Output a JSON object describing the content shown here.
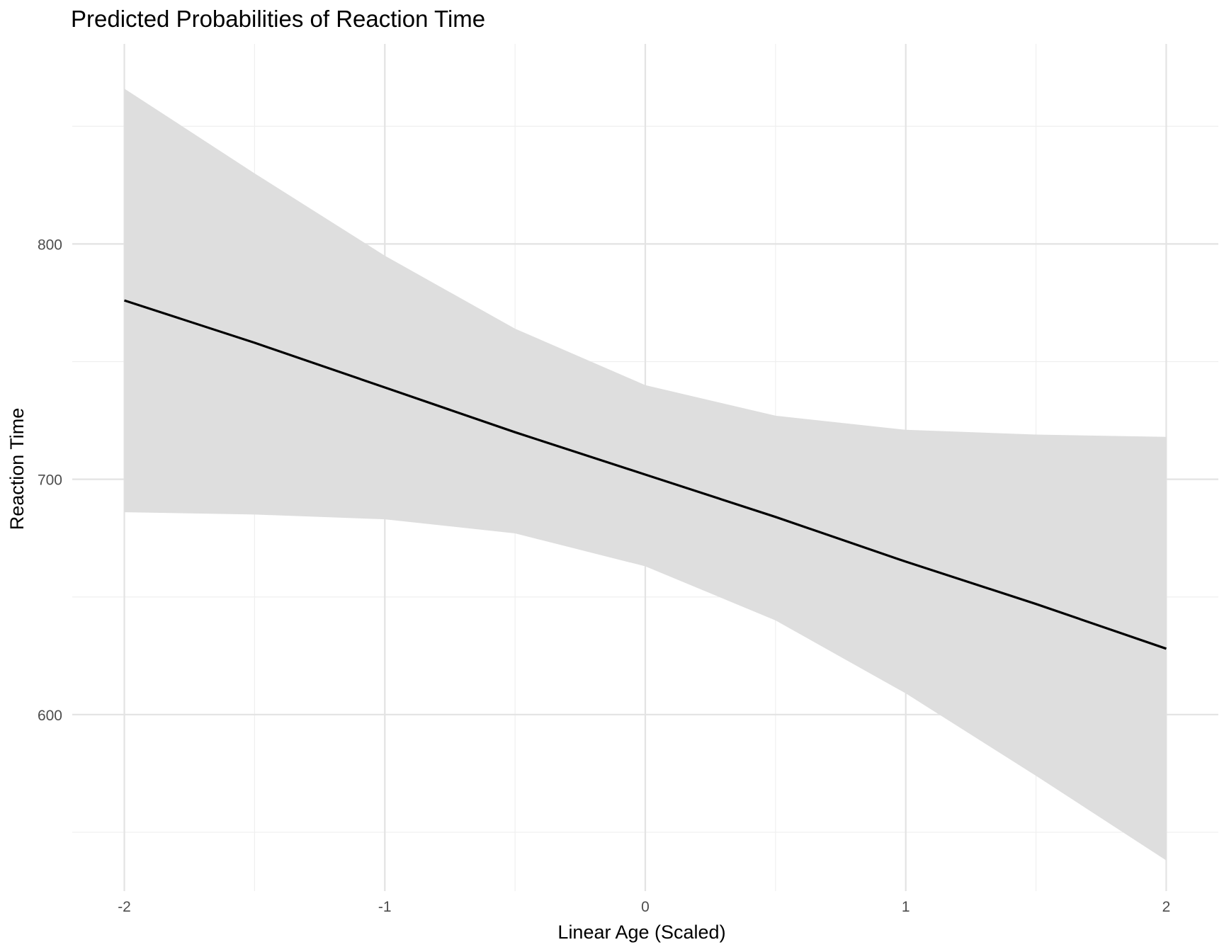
{
  "chart_data": {
    "type": "line",
    "title": "Predicted Probabilities of Reaction Time",
    "xlabel": "Linear Age (Scaled)",
    "ylabel": "Reaction Time",
    "xlim": [
      -2.2,
      2.2
    ],
    "ylim": [
      525,
      885
    ],
    "x_ticks": [
      -2,
      -1,
      0,
      1,
      2
    ],
    "x_tick_labels": [
      "-2",
      "-1",
      "0",
      "1",
      "2"
    ],
    "y_ticks": [
      600,
      700,
      800
    ],
    "y_tick_labels": [
      "600",
      "700",
      "800"
    ],
    "grid": true,
    "legend": "none",
    "series": [
      {
        "x": [
          -2,
          -1.5,
          -1,
          -0.5,
          0,
          0.5,
          1,
          1.5,
          2
        ],
        "values": [
          776,
          758,
          739,
          720,
          702,
          684,
          665,
          647,
          628
        ],
        "lower": [
          686,
          685,
          683,
          677,
          663,
          640,
          609,
          574,
          538
        ],
        "upper": [
          866,
          830,
          795,
          764,
          740,
          727,
          721,
          719,
          718
        ],
        "color": "#000000",
        "band_color": "#dedede"
      }
    ]
  }
}
